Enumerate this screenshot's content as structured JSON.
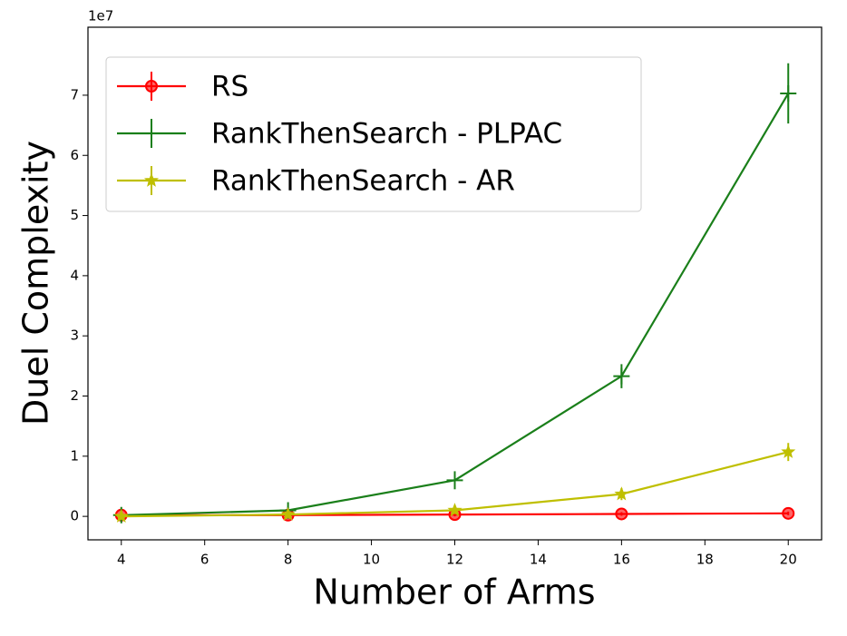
{
  "chart_data": {
    "type": "line",
    "x_label": "Number of Arms",
    "y_label": "Duel Complexity",
    "y_offset_label": "1e7",
    "x": [
      4,
      8,
      12,
      16,
      20
    ],
    "series": [
      {
        "name": "RS",
        "color": "#ff0000",
        "marker": "circle",
        "values": [
          0.02,
          0.02,
          0.03,
          0.04,
          0.05
        ],
        "errors": [
          0.03,
          0.03,
          0.03,
          0.03,
          0.03
        ]
      },
      {
        "name": "RankThenSearch - PLPAC",
        "color": "#1a7f1a",
        "marker": "plus",
        "values": [
          0.02,
          0.1,
          0.6,
          2.33,
          7.03
        ],
        "errors": [
          0.02,
          0.05,
          0.15,
          0.2,
          0.5
        ]
      },
      {
        "name": "RankThenSearch - AR",
        "color": "#bfbf00",
        "marker": "star",
        "values": [
          0.0,
          0.03,
          0.1,
          0.37,
          1.07
        ],
        "errors": [
          0.02,
          0.03,
          0.06,
          0.1,
          0.15
        ]
      }
    ],
    "xlim": [
      3.2,
      20.8
    ],
    "ylim": [
      -0.39,
      8.13
    ],
    "xticks": [
      4,
      6,
      8,
      10,
      12,
      14,
      16,
      18,
      20
    ],
    "yticks": [
      0,
      1,
      2,
      3,
      4,
      5,
      6,
      7
    ],
    "legend": "upper left",
    "grid": false
  }
}
